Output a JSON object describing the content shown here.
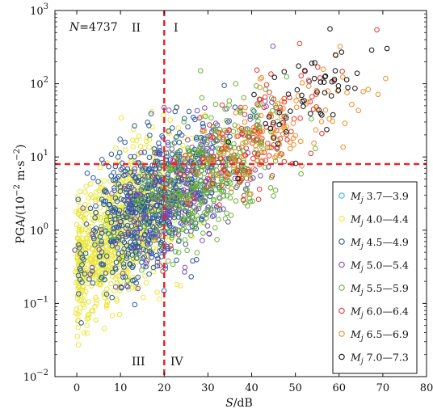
{
  "chart_data": {
    "type": "scatter",
    "xlabel_var": "S",
    "xlabel_unit": "/dB",
    "ylabel_main": "PGA/(10",
    "ylabel_exp": "−2",
    "ylabel_unit": " m·s",
    "ylabel_exp2": "−2",
    "ylabel_close": ")",
    "xlim": [
      -5,
      80
    ],
    "ylim_log10": [
      -2,
      3
    ],
    "y_scale": "log",
    "x_ticks": [
      "0",
      "10",
      "20",
      "30",
      "40",
      "50",
      "60",
      "70",
      "80"
    ],
    "y_ticks": [
      {
        "base": "10",
        "exp": "−2"
      },
      {
        "base": "10",
        "exp": "−1"
      },
      {
        "base": "10",
        "exp": "0"
      },
      {
        "base": "10",
        "exp": "1"
      },
      {
        "base": "10",
        "exp": "2"
      },
      {
        "base": "10",
        "exp": "3"
      }
    ],
    "annotation_n": "N",
    "annotation_n_value": "=4737",
    "quadrant_labels": [
      "II",
      "I",
      "III",
      "IV"
    ],
    "threshold_lines": {
      "x": 20,
      "y": 8,
      "color": "#e8252a",
      "style": "dashed"
    },
    "legend_position": "bottom-right",
    "series": [
      {
        "name": "3.7—3.9",
        "color": "#3fb7d3",
        "count_hint": 15
      },
      {
        "name": "4.0—4.4",
        "color": "#ece63a",
        "count_hint": 1700
      },
      {
        "name": "4.5—4.9",
        "color": "#2a58a6",
        "count_hint": 1300
      },
      {
        "name": "5.0—5.4",
        "color": "#7f4fb4",
        "count_hint": 450
      },
      {
        "name": "5.5—5.9",
        "color": "#68b43a",
        "count_hint": 700
      },
      {
        "name": "6.0—6.4",
        "color": "#e03a2c",
        "count_hint": 250
      },
      {
        "name": "6.5—6.9",
        "color": "#f28c28",
        "count_hint": 200
      },
      {
        "name": "7.0—7.3",
        "color": "#111111",
        "count_hint": 100
      }
    ],
    "legend_prefix_m": "M",
    "legend_prefix_sub": "j"
  }
}
